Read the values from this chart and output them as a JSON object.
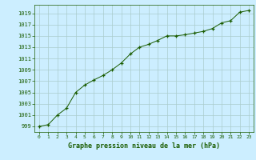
{
  "x": [
    0,
    1,
    2,
    3,
    4,
    5,
    6,
    7,
    8,
    9,
    10,
    11,
    12,
    13,
    14,
    15,
    16,
    17,
    18,
    19,
    20,
    21,
    22,
    23
  ],
  "y": [
    999.0,
    999.3,
    1001.0,
    1002.2,
    1005.0,
    1006.3,
    1007.2,
    1008.0,
    1009.0,
    1010.2,
    1011.8,
    1013.0,
    1013.5,
    1014.2,
    1015.0,
    1015.0,
    1015.2,
    1015.5,
    1015.8,
    1016.3,
    1017.3,
    1017.7,
    1019.2,
    1019.5
  ],
  "line_color": "#1a5c00",
  "marker": "+",
  "marker_color": "#1a5c00",
  "bg_color": "#cceeff",
  "grid_color": "#aacccc",
  "xlabel": "Graphe pression niveau de la mer (hPa)",
  "xlabel_color": "#1a5c00",
  "ylabel_color": "#1a5c00",
  "tick_color": "#1a5c00",
  "ylim_min": 998,
  "ylim_max": 1020.5,
  "xlim_min": -0.5,
  "xlim_max": 23.5
}
